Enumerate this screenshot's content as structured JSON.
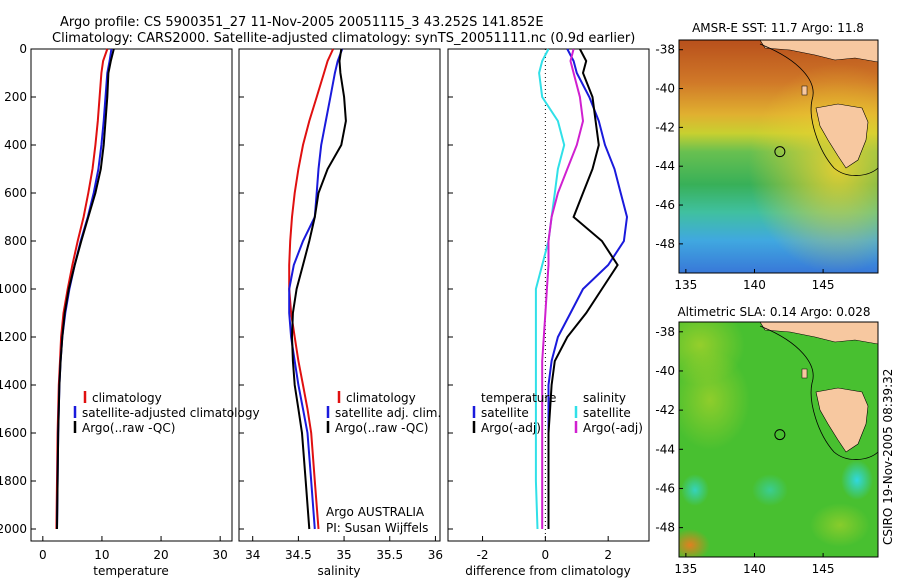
{
  "header": {
    "line1": "Argo profile: CS 5900351_27 11-Nov-2005 20051115_3 43.252S 141.852E",
    "line2": "Climatology: CARS2000. Satellite-adjusted climatology: synTS_20051111.nc (0.9d earlier)"
  },
  "side_label": "CSIRO 19-Nov-2005 08:39:32",
  "colors": {
    "climatology": "#e01010",
    "satellite": "#1a1adc",
    "argo": "#000000",
    "cyan": "#30e0e8",
    "magenta": "#d020d0"
  },
  "chart_data": [
    {
      "type": "line",
      "xlabel": "temperature",
      "xlim": [
        -2,
        32
      ],
      "ylim": [
        0,
        2050
      ],
      "xticks": [
        0,
        10,
        20,
        30
      ],
      "yticks": [
        0,
        200,
        400,
        600,
        800,
        1000,
        1200,
        1400,
        1600,
        1800,
        2000
      ],
      "legend": {
        "placement": "lower-right",
        "entries": [
          "climatology",
          "satellite-adjusted climatology",
          "Argo(..raw -QC)"
        ]
      },
      "series": [
        {
          "name": "climatology",
          "color_key": "climatology",
          "x": [
            10.9,
            10.2,
            9.9,
            9.6,
            9.3,
            8.9,
            8.4,
            7.7,
            6.9,
            5.9,
            5.0,
            4.2,
            3.5,
            3.1,
            2.9,
            2.7,
            2.6,
            2.5,
            2.4,
            2.3
          ],
          "y": [
            0,
            50,
            100,
            200,
            300,
            400,
            500,
            600,
            700,
            800,
            900,
            1000,
            1100,
            1200,
            1300,
            1400,
            1500,
            1600,
            1800,
            2000
          ]
        },
        {
          "name": "satellite-adjusted climatology",
          "color_key": "satellite",
          "x": [
            11.6,
            11.3,
            10.9,
            10.6,
            10.3,
            9.9,
            9.4,
            8.6,
            7.6,
            6.4,
            5.4,
            4.5,
            3.8,
            3.3,
            3.0,
            2.8,
            2.7,
            2.6,
            2.5,
            2.4
          ],
          "y": [
            0,
            50,
            100,
            200,
            300,
            400,
            500,
            600,
            700,
            800,
            900,
            1000,
            1100,
            1200,
            1300,
            1400,
            1500,
            1600,
            1800,
            2000
          ]
        },
        {
          "name": "Argo(..raw -QC)",
          "color_key": "argo",
          "x": [
            12.0,
            11.5,
            11.1,
            10.9,
            10.6,
            10.3,
            9.8,
            8.9,
            7.7,
            6.5,
            5.4,
            4.4,
            3.7,
            3.3,
            3.0,
            2.8,
            2.7,
            2.6,
            2.5,
            2.4
          ],
          "y": [
            0,
            50,
            100,
            200,
            300,
            400,
            500,
            600,
            700,
            800,
            900,
            1000,
            1100,
            1200,
            1300,
            1400,
            1500,
            1600,
            1800,
            2000
          ]
        }
      ]
    },
    {
      "type": "line",
      "xlabel": "salinity",
      "xlim": [
        33.85,
        36.05
      ],
      "ylim": [
        0,
        2050
      ],
      "xticks": [
        34,
        34.5,
        35,
        35.5,
        36
      ],
      "legend": {
        "placement": "lower-right",
        "entries": [
          "climatology",
          "satellite adj. clim.",
          "Argo(..raw -QC)"
        ]
      },
      "annotation": [
        "Argo AUSTRALIA",
        "PI: Susan Wijffels"
      ],
      "series": [
        {
          "name": "climatology",
          "color_key": "climatology",
          "x": [
            34.88,
            34.82,
            34.78,
            34.7,
            34.62,
            34.55,
            34.5,
            34.46,
            34.43,
            34.41,
            34.4,
            34.4,
            34.42,
            34.46,
            34.5,
            34.55,
            34.6,
            34.64,
            34.68,
            34.72
          ],
          "y": [
            0,
            50,
            100,
            200,
            300,
            400,
            500,
            600,
            700,
            800,
            900,
            1000,
            1100,
            1200,
            1300,
            1400,
            1500,
            1600,
            1800,
            2000
          ]
        },
        {
          "name": "satellite adj. clim.",
          "color_key": "satellite",
          "x": [
            34.98,
            34.93,
            34.9,
            34.85,
            34.8,
            34.75,
            34.72,
            34.7,
            34.68,
            34.55,
            34.45,
            34.4,
            34.4,
            34.42,
            34.46,
            34.5,
            34.55,
            34.6,
            34.64,
            34.68
          ],
          "y": [
            0,
            50,
            100,
            200,
            300,
            400,
            500,
            600,
            700,
            800,
            900,
            1000,
            1100,
            1200,
            1300,
            1400,
            1500,
            1600,
            1800,
            2000
          ]
        },
        {
          "name": "Argo(..raw -QC)",
          "color_key": "argo",
          "x": [
            34.97,
            34.95,
            34.96,
            35.0,
            35.02,
            34.97,
            34.82,
            34.72,
            34.68,
            34.62,
            34.55,
            34.48,
            34.44,
            34.43,
            34.44,
            34.46,
            34.5,
            34.54,
            34.58,
            34.62
          ],
          "y": [
            0,
            50,
            100,
            200,
            300,
            400,
            500,
            600,
            700,
            800,
            900,
            1000,
            1100,
            1200,
            1300,
            1400,
            1500,
            1600,
            1800,
            2000
          ]
        }
      ]
    },
    {
      "type": "line",
      "xlabel": "difference from climatology",
      "xlim": [
        -3.1,
        3.3
      ],
      "ylim": [
        0,
        2050
      ],
      "xticks": [
        -2,
        0,
        2
      ],
      "legend": {
        "placement": "lower",
        "groups": [
          "temperature",
          "salinity"
        ],
        "entries": [
          "satellite",
          "Argo(-adj)",
          "satellite",
          "Argo(-adj)"
        ]
      },
      "series": [
        {
          "name": "satellite",
          "group": "temperature",
          "color_key": "satellite",
          "x": [
            0.7,
            0.9,
            1.0,
            1.4,
            1.7,
            1.9,
            2.2,
            2.4,
            2.6,
            2.5,
            2.0,
            1.2,
            0.8,
            0.4,
            0.2,
            0.1,
            0.1,
            0.1,
            0.1,
            0.1
          ],
          "y": [
            0,
            50,
            100,
            200,
            300,
            400,
            500,
            600,
            700,
            800,
            900,
            1000,
            1100,
            1200,
            1300,
            1400,
            1500,
            1600,
            1800,
            2000
          ]
        },
        {
          "name": "Argo(-adj)",
          "group": "temperature",
          "color_key": "argo",
          "x": [
            1.1,
            1.3,
            1.2,
            1.5,
            1.6,
            1.7,
            1.5,
            1.2,
            0.9,
            1.8,
            2.3,
            1.8,
            1.3,
            0.7,
            0.3,
            0.2,
            0.15,
            0.1,
            0.1,
            0.1
          ],
          "y": [
            0,
            50,
            100,
            200,
            300,
            400,
            500,
            600,
            700,
            800,
            900,
            1000,
            1100,
            1200,
            1300,
            1400,
            1500,
            1600,
            1800,
            2000
          ]
        },
        {
          "name": "satellite",
          "group": "salinity",
          "color_key": "cyan",
          "x": [
            0.1,
            -0.1,
            -0.2,
            -0.1,
            0.4,
            0.6,
            0.4,
            0.3,
            0.2,
            0.1,
            -0.1,
            -0.3,
            -0.3,
            -0.3,
            -0.3,
            -0.3,
            -0.3,
            -0.3,
            -0.3,
            -0.25
          ],
          "y": [
            0,
            50,
            100,
            200,
            300,
            400,
            500,
            600,
            700,
            800,
            900,
            1000,
            1100,
            1200,
            1300,
            1400,
            1500,
            1600,
            1800,
            2000
          ]
        },
        {
          "name": "Argo(-adj)",
          "group": "salinity",
          "color_key": "magenta",
          "x": [
            0.9,
            0.8,
            0.9,
            1.1,
            1.2,
            1.0,
            0.7,
            0.4,
            0.2,
            0.1,
            0.1,
            0.05,
            0.0,
            -0.05,
            -0.1,
            -0.1,
            -0.1,
            -0.1,
            -0.1,
            -0.1
          ],
          "y": [
            0,
            50,
            100,
            200,
            300,
            400,
            500,
            600,
            700,
            800,
            900,
            1000,
            1100,
            1200,
            1300,
            1400,
            1500,
            1600,
            1800,
            2000
          ]
        }
      ]
    },
    {
      "type": "heatmap",
      "title": "AMSR-E SST: 11.7 Argo: 11.8",
      "xlim": [
        134.5,
        149
      ],
      "ylim": [
        -49.5,
        -37.5
      ],
      "xticks": [
        135,
        140,
        145
      ],
      "yticks": [
        -38,
        -40,
        -42,
        -44,
        -46,
        -48
      ],
      "marker": {
        "lon": 141.85,
        "lat": -43.25
      }
    },
    {
      "type": "heatmap",
      "title": "Altimetric SLA: 0.14 Argo: 0.028",
      "xlim": [
        134.5,
        149
      ],
      "ylim": [
        -49.5,
        -37.5
      ],
      "xticks": [
        135,
        140,
        145
      ],
      "yticks": [
        -38,
        -40,
        -42,
        -44,
        -46,
        -48
      ],
      "marker": {
        "lon": 141.85,
        "lat": -43.25
      }
    }
  ]
}
